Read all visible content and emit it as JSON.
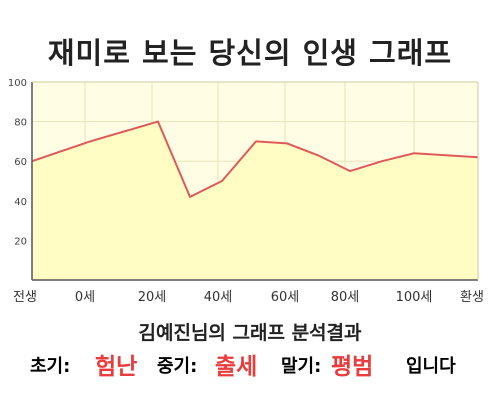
{
  "title": "재미로 보는 당신의 인생 그래프",
  "result": {
    "heading": "김예진님의 그래프 분석결과",
    "early_label": "초기:",
    "early_value": "험난",
    "mid_label": "중기:",
    "mid_value": "출세",
    "late_label": "말기:",
    "late_value": "평범",
    "tail": "입니다"
  },
  "colors": {
    "line": "#e05a5a",
    "fill": "#fffcc4",
    "plot_bg": "#fffde4",
    "grid": "#e8e4b8",
    "axis": "#555555",
    "highlight": "#ea3c3c"
  },
  "chart_data": {
    "type": "area",
    "title": "재미로 보는 당신의 인생 그래프",
    "x_tick_labels": [
      "전생",
      "0세",
      "20세",
      "40세",
      "60세",
      "80세",
      "100세",
      "환생"
    ],
    "y_tick_labels": [
      "20",
      "40",
      "60",
      "80",
      "100"
    ],
    "ylim": [
      0,
      100
    ],
    "grid": true,
    "series": [
      {
        "x_label_positions": [
          "전생",
          "0세",
          "20세",
          "40세",
          "60세",
          "80세",
          "100세",
          "환생"
        ],
        "points": [
          {
            "age": "전생",
            "value": 60
          },
          {
            "age": "0세",
            "value": 70
          },
          {
            "age": "20세",
            "value": 80
          },
          {
            "age": "25세",
            "value": 42
          },
          {
            "age": "35세",
            "value": 50
          },
          {
            "age": "43세",
            "value": 70
          },
          {
            "age": "53세",
            "value": 69
          },
          {
            "age": "62세",
            "value": 63
          },
          {
            "age": "73세",
            "value": 55
          },
          {
            "age": "85세",
            "value": 60
          },
          {
            "age": "97세",
            "value": 64
          },
          {
            "age": "환생",
            "value": 62
          }
        ]
      }
    ]
  }
}
